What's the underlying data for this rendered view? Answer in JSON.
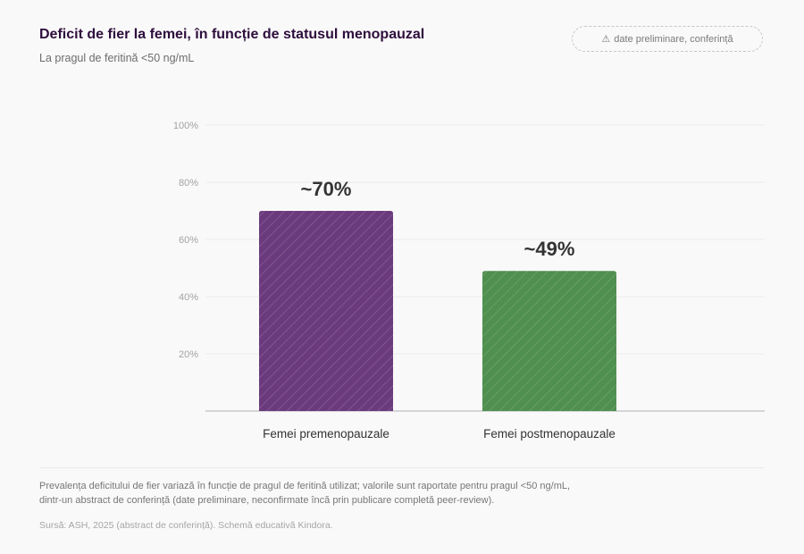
{
  "header": {
    "title": "Deficit de fier la femei, în funcție de statusul menopauzal",
    "subtitle": "La pragul de feritină <50 ng/mL",
    "badge_icon": "warning-icon",
    "badge_symbol": "⚠",
    "badge_text": "date preliminare, conferință"
  },
  "chart_data": {
    "type": "bar",
    "categories": [
      "Femei premenopauzale",
      "Femei postmenopauzale"
    ],
    "values": [
      70,
      49
    ],
    "value_labels": [
      "~70%",
      "~49%"
    ],
    "colors": [
      "#6b3a7d",
      "#4f8f4f"
    ],
    "yticks": [
      20,
      40,
      60,
      80,
      100
    ],
    "ytick_labels": [
      "20%",
      "40%",
      "60%",
      "80%",
      "100%"
    ],
    "ylim": [
      0,
      100
    ],
    "grid": true,
    "bar_pattern": "diagonal-hatch"
  },
  "footer": {
    "note_line1": "Prevalența deficitului de fier variază în funcție de pragul de feritină utilizat; valorile sunt raportate pentru pragul <50 ng/mL,",
    "note_line2": "dintr-un abstract de conferință (date preliminare, neconfirmate încă prin publicare completă peer-review).",
    "source": "Sursă: ASH, 2025 (abstract de conferință). Schemă educativă Kindora."
  }
}
